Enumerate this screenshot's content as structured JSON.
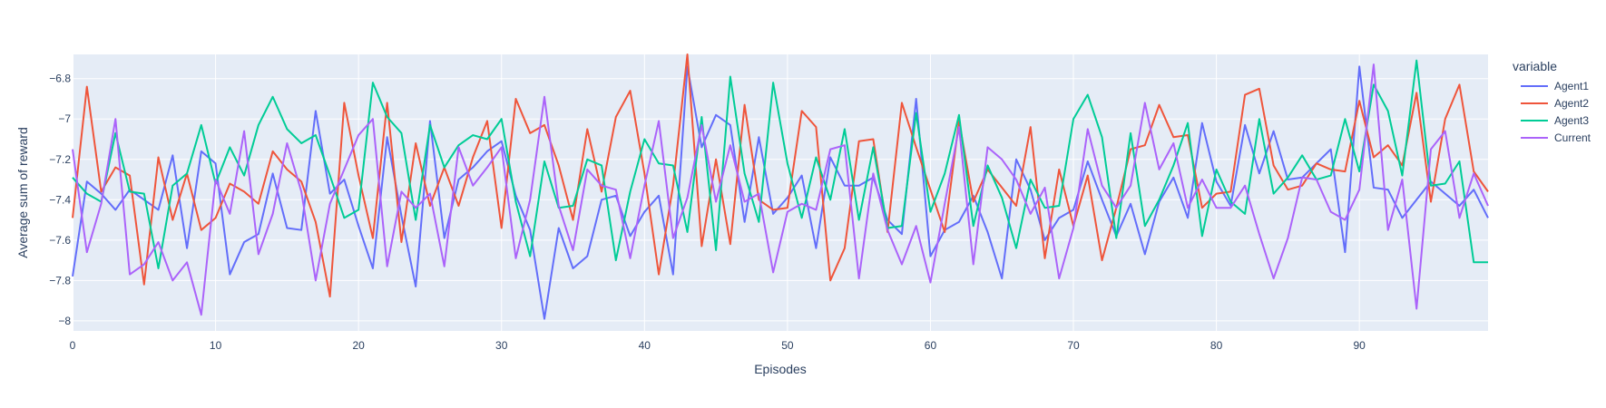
{
  "chart_data": {
    "type": "line",
    "xlabel": "Episodes",
    "ylabel": "Average sum of reward",
    "xlim": [
      0,
      99
    ],
    "ylim": [
      -8.05,
      -6.68
    ],
    "x_ticks": [
      0,
      10,
      20,
      30,
      40,
      50,
      60,
      70,
      80,
      90
    ],
    "y_ticks": [
      -8,
      -7.8,
      -7.6,
      -7.4,
      -7.2,
      -7,
      -6.8
    ],
    "y_tick_labels": [
      "−8",
      "−7.8",
      "−7.6",
      "−7.4",
      "−7.2",
      "−7",
      "−6.8"
    ],
    "grid": true,
    "legend": {
      "title": "variable",
      "position": "right"
    },
    "x": [
      0,
      1,
      2,
      3,
      4,
      5,
      6,
      7,
      8,
      9,
      10,
      11,
      12,
      13,
      14,
      15,
      16,
      17,
      18,
      19,
      20,
      21,
      22,
      23,
      24,
      25,
      26,
      27,
      28,
      29,
      30,
      31,
      32,
      33,
      34,
      35,
      36,
      37,
      38,
      39,
      40,
      41,
      42,
      43,
      44,
      45,
      46,
      47,
      48,
      49,
      50,
      51,
      52,
      53,
      54,
      55,
      56,
      57,
      58,
      59,
      60,
      61,
      62,
      63,
      64,
      65,
      66,
      67,
      68,
      69,
      70,
      71,
      72,
      73,
      74,
      75,
      76,
      77,
      78,
      79,
      80,
      81,
      82,
      83,
      84,
      85,
      86,
      87,
      88,
      89,
      90,
      91,
      92,
      93,
      94,
      95,
      96,
      97,
      98,
      99
    ],
    "series": [
      {
        "name": "Agent1",
        "color": "#636efa",
        "values": [
          -7.78,
          -7.31,
          -7.37,
          -7.45,
          -7.35,
          -7.4,
          -7.45,
          -7.18,
          -7.64,
          -7.16,
          -7.22,
          -7.77,
          -7.61,
          -7.57,
          -7.27,
          -7.54,
          -7.55,
          -6.96,
          -7.37,
          -7.3,
          -7.53,
          -7.74,
          -7.09,
          -7.48,
          -7.83,
          -7.01,
          -7.59,
          -7.3,
          -7.24,
          -7.16,
          -7.11,
          -7.38,
          -7.55,
          -7.99,
          -7.54,
          -7.74,
          -7.68,
          -7.4,
          -7.38,
          -7.58,
          -7.46,
          -7.38,
          -7.77,
          -6.74,
          -7.14,
          -6.98,
          -7.03,
          -7.51,
          -7.09,
          -7.47,
          -7.39,
          -7.28,
          -7.64,
          -7.19,
          -7.33,
          -7.33,
          -7.29,
          -7.5,
          -7.57,
          -6.9,
          -7.68,
          -7.55,
          -7.51,
          -7.38,
          -7.56,
          -7.79,
          -7.2,
          -7.35,
          -7.6,
          -7.49,
          -7.45,
          -7.21,
          -7.4,
          -7.58,
          -7.42,
          -7.67,
          -7.41,
          -7.29,
          -7.49,
          -7.02,
          -7.31,
          -7.43,
          -7.03,
          -7.27,
          -7.06,
          -7.3,
          -7.29,
          -7.22,
          -7.15,
          -7.66,
          -6.74,
          -7.34,
          -7.35,
          -7.49,
          -7.4,
          -7.31,
          -7.37,
          -7.43,
          -7.35,
          -7.49
        ]
      },
      {
        "name": "Agent2",
        "color": "#ef553b",
        "values": [
          -7.49,
          -6.84,
          -7.36,
          -7.24,
          -7.28,
          -7.82,
          -7.19,
          -7.5,
          -7.27,
          -7.55,
          -7.49,
          -7.32,
          -7.36,
          -7.42,
          -7.16,
          -7.25,
          -7.31,
          -7.51,
          -7.88,
          -6.92,
          -7.28,
          -7.59,
          -6.92,
          -7.61,
          -7.12,
          -7.43,
          -7.24,
          -7.43,
          -7.19,
          -7.01,
          -7.54,
          -6.9,
          -7.07,
          -7.03,
          -7.23,
          -7.5,
          -7.05,
          -7.36,
          -6.99,
          -6.86,
          -7.27,
          -7.77,
          -7.33,
          -6.68,
          -7.63,
          -7.2,
          -7.62,
          -6.93,
          -7.4,
          -7.45,
          -7.44,
          -6.96,
          -7.04,
          -7.8,
          -7.64,
          -7.11,
          -7.1,
          -7.56,
          -6.92,
          -7.14,
          -7.35,
          -7.56,
          -7.01,
          -7.41,
          -7.25,
          -7.34,
          -7.43,
          -7.04,
          -7.69,
          -7.25,
          -7.53,
          -7.28,
          -7.7,
          -7.44,
          -7.15,
          -7.13,
          -6.93,
          -7.09,
          -7.08,
          -7.44,
          -7.37,
          -7.36,
          -6.88,
          -6.85,
          -7.23,
          -7.35,
          -7.33,
          -7.22,
          -7.25,
          -7.26,
          -6.91,
          -7.19,
          -7.13,
          -7.23,
          -6.87,
          -7.41,
          -7.0,
          -6.83,
          -7.26,
          -7.36
        ]
      },
      {
        "name": "Agent3",
        "color": "#00cc96",
        "values": [
          -7.29,
          -7.37,
          -7.41,
          -7.07,
          -7.36,
          -7.37,
          -7.74,
          -7.33,
          -7.27,
          -7.03,
          -7.32,
          -7.14,
          -7.28,
          -7.03,
          -6.89,
          -7.05,
          -7.12,
          -7.08,
          -7.28,
          -7.49,
          -7.45,
          -6.82,
          -6.99,
          -7.07,
          -7.5,
          -7.03,
          -7.24,
          -7.13,
          -7.08,
          -7.1,
          -7.0,
          -7.41,
          -7.68,
          -7.21,
          -7.44,
          -7.43,
          -7.2,
          -7.23,
          -7.7,
          -7.36,
          -7.1,
          -7.22,
          -7.23,
          -7.56,
          -6.99,
          -7.65,
          -6.79,
          -7.27,
          -7.51,
          -6.82,
          -7.22,
          -7.49,
          -7.19,
          -7.4,
          -7.05,
          -7.5,
          -7.14,
          -7.54,
          -7.53,
          -6.97,
          -7.46,
          -7.27,
          -6.98,
          -7.53,
          -7.23,
          -7.39,
          -7.64,
          -7.3,
          -7.44,
          -7.43,
          -7.0,
          -6.88,
          -7.09,
          -7.59,
          -7.07,
          -7.53,
          -7.4,
          -7.23,
          -7.02,
          -7.58,
          -7.25,
          -7.41,
          -7.47,
          -7.0,
          -7.37,
          -7.29,
          -7.18,
          -7.3,
          -7.28,
          -7.0,
          -7.26,
          -6.83,
          -6.96,
          -7.28,
          -6.71,
          -7.33,
          -7.32,
          -7.21,
          -7.71,
          -7.71
        ]
      },
      {
        "name": "Current",
        "color": "#ab63fa",
        "values": [
          -7.15,
          -7.66,
          -7.42,
          -7.0,
          -7.77,
          -7.72,
          -7.61,
          -7.8,
          -7.71,
          -7.97,
          -7.3,
          -7.47,
          -7.06,
          -7.67,
          -7.47,
          -7.12,
          -7.36,
          -7.8,
          -7.42,
          -7.25,
          -7.08,
          -7.0,
          -7.73,
          -7.36,
          -7.44,
          -7.37,
          -7.73,
          -7.14,
          -7.33,
          -7.24,
          -7.14,
          -7.69,
          -7.4,
          -6.89,
          -7.43,
          -7.65,
          -7.25,
          -7.33,
          -7.35,
          -7.69,
          -7.33,
          -7.01,
          -7.59,
          -7.39,
          -7.03,
          -7.41,
          -7.13,
          -7.41,
          -7.37,
          -7.76,
          -7.46,
          -7.42,
          -7.45,
          -7.15,
          -7.13,
          -7.79,
          -7.27,
          -7.55,
          -7.72,
          -7.53,
          -7.81,
          -7.42,
          -7.04,
          -7.72,
          -7.14,
          -7.2,
          -7.3,
          -7.47,
          -7.34,
          -7.79,
          -7.54,
          -7.05,
          -7.33,
          -7.44,
          -7.33,
          -6.92,
          -7.25,
          -7.12,
          -7.44,
          -7.3,
          -7.44,
          -7.44,
          -7.33,
          -7.57,
          -7.79,
          -7.59,
          -7.29,
          -7.3,
          -7.46,
          -7.5,
          -7.35,
          -6.73,
          -7.55,
          -7.3,
          -7.94,
          -7.15,
          -7.06,
          -7.49,
          -7.27,
          -7.43
        ]
      }
    ]
  }
}
